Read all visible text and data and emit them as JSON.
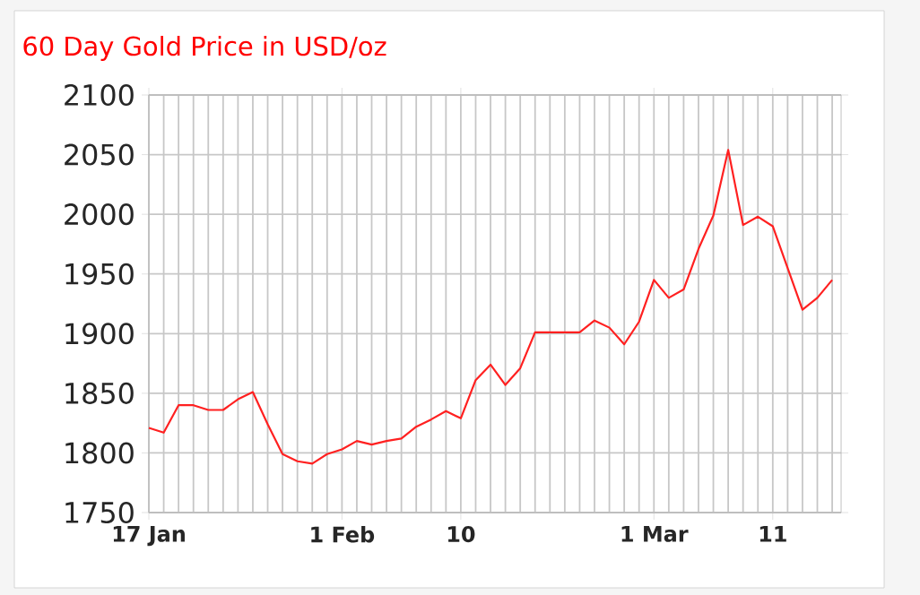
{
  "chart_data": {
    "type": "line",
    "title": "60 Day Gold Price in USD/oz",
    "categories": [
      "17 Jan",
      null,
      null,
      null,
      null,
      null,
      null,
      null,
      null,
      null,
      null,
      null,
      null,
      "1 Feb",
      null,
      null,
      null,
      null,
      null,
      null,
      null,
      "10",
      null,
      null,
      null,
      null,
      null,
      null,
      null,
      null,
      null,
      null,
      null,
      null,
      "1 Mar",
      null,
      null,
      null,
      null,
      null,
      null,
      null,
      "11",
      null,
      null,
      null,
      null
    ],
    "series": [
      {
        "color": "#ff2020",
        "values": [
          1821,
          1817,
          1840,
          1840,
          1836,
          1836,
          1845,
          1851,
          1824,
          1799,
          1793,
          1791,
          1799,
          1803,
          1810,
          1807,
          1810,
          1812,
          1822,
          1828,
          1835,
          1829,
          1861,
          1874,
          1857,
          1871,
          1901,
          1901,
          1901,
          1901,
          1911,
          1905,
          1891,
          1910,
          1945,
          1930,
          1937,
          1971,
          1999,
          2054,
          1991,
          1998,
          1990,
          1955,
          1920,
          1930,
          1945
        ]
      }
    ],
    "ylim": [
      1750,
      2100
    ],
    "yticks": [
      1750,
      1800,
      1850,
      1900,
      1950,
      2000,
      2050,
      2100
    ],
    "grid": true,
    "marker": "none",
    "line_style": "solid"
  }
}
